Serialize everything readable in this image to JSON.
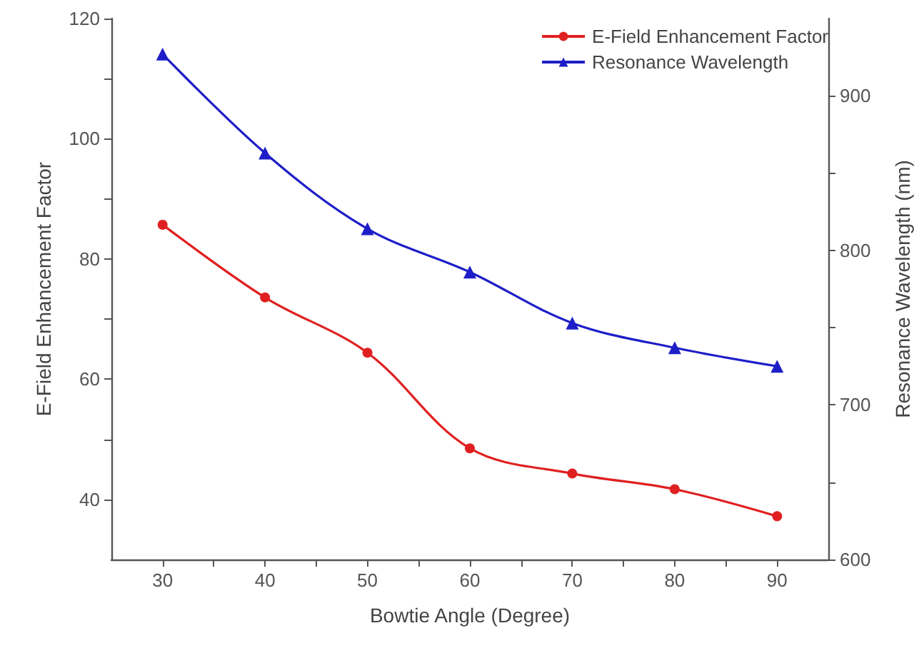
{
  "chart_data": {
    "type": "line",
    "xlabel": "Bowtie Angle (Degree)",
    "ylabel": "E-Field Enhancement Factor",
    "y2label": "Resonance Wavelength (nm)",
    "x": [
      30,
      40,
      50,
      60,
      70,
      80,
      90
    ],
    "series": [
      {
        "name": "E-Field Enhancement Factor",
        "color": "#e02020",
        "marker": "circle",
        "values": [
          85.7,
          73.6,
          64.4,
          48.5,
          44.3,
          41.7,
          37.2
        ]
      },
      {
        "name": "Resonance Wavelength",
        "color": "#1e1ec8",
        "marker": "triangle",
        "axis": "y2",
        "values": [
          927,
          863,
          814,
          786,
          753,
          737,
          725
        ]
      }
    ],
    "xlim": [
      25,
      95
    ],
    "xticks": [
      30,
      {
        "value": 35,
        "label": null
      },
      40,
      {
        "value": 45,
        "label": null
      },
      50,
      {
        "value": 55,
        "label": null
      },
      60,
      {
        "value": 65,
        "label": null
      },
      70,
      {
        "value": 75,
        "label": null
      },
      80,
      {
        "value": 85,
        "label": null
      },
      90
    ],
    "ylim": [
      30,
      120
    ],
    "yticks": [
      40,
      {
        "value": 50,
        "label": null
      },
      60,
      {
        "value": 70,
        "label": null
      },
      80,
      {
        "value": 90,
        "label": null
      },
      100,
      {
        "value": 110,
        "label": null
      },
      120
    ],
    "y2lim": [
      600,
      950
    ],
    "y2ticks": [
      600,
      {
        "value": 650,
        "label": null
      },
      700,
      {
        "value": 750,
        "label": null
      },
      800,
      {
        "value": 850,
        "label": null
      },
      900
    ],
    "legend": "top right",
    "grid": false,
    "line_style": "solid"
  }
}
